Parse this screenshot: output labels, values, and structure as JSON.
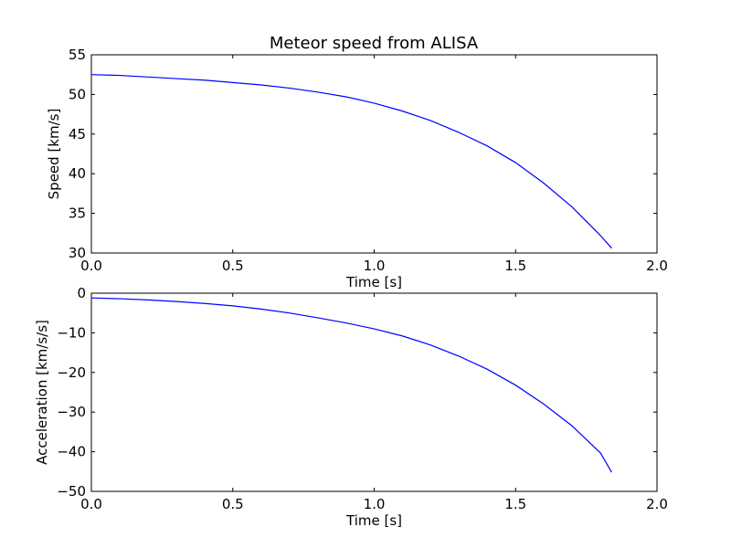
{
  "figure": {
    "title": "Meteor speed from  ALISA"
  },
  "chart_data": [
    {
      "type": "line",
      "title": "Meteor speed from  ALISA",
      "xlabel": "Time [s]",
      "ylabel": "Speed [km/s]",
      "xlim": [
        0.0,
        2.0
      ],
      "ylim": [
        30,
        55
      ],
      "xticks": [
        0.0,
        0.5,
        1.0,
        1.5,
        2.0
      ],
      "xtick_labels": [
        "0.0",
        "0.5",
        "1.0",
        "1.5",
        "2.0"
      ],
      "yticks": [
        30,
        35,
        40,
        45,
        50,
        55
      ],
      "ytick_labels": [
        "30",
        "35",
        "40",
        "45",
        "50",
        "55"
      ],
      "grid": false,
      "series": [
        {
          "color": "#0000ff",
          "x": [
            0.0,
            0.1,
            0.2,
            0.3,
            0.4,
            0.5,
            0.6,
            0.7,
            0.8,
            0.9,
            1.0,
            1.1,
            1.2,
            1.3,
            1.4,
            1.5,
            1.6,
            1.7,
            1.8,
            1.84
          ],
          "y": [
            52.5,
            52.4,
            52.2,
            52.0,
            51.8,
            51.5,
            51.2,
            50.8,
            50.3,
            49.7,
            48.9,
            47.9,
            46.7,
            45.2,
            43.5,
            41.4,
            38.8,
            35.8,
            32.2,
            30.6
          ]
        }
      ]
    },
    {
      "type": "line",
      "xlabel": "Time [s]",
      "ylabel": "Acceleration [km/s/s]",
      "xlim": [
        0.0,
        2.0
      ],
      "ylim": [
        -50,
        0
      ],
      "xticks": [
        0.0,
        0.5,
        1.0,
        1.5,
        2.0
      ],
      "xtick_labels": [
        "0.0",
        "0.5",
        "1.0",
        "1.5",
        "2.0"
      ],
      "yticks": [
        -50,
        -40,
        -30,
        -20,
        -10,
        0
      ],
      "ytick_labels": [
        "−50",
        "−40",
        "−30",
        "−20",
        "−10",
        "0"
      ],
      "grid": false,
      "series": [
        {
          "color": "#0000ff",
          "x": [
            0.0,
            0.1,
            0.2,
            0.3,
            0.4,
            0.5,
            0.6,
            0.7,
            0.8,
            0.9,
            1.0,
            1.1,
            1.2,
            1.3,
            1.4,
            1.5,
            1.6,
            1.7,
            1.8,
            1.84
          ],
          "y": [
            -1.2,
            -1.4,
            -1.7,
            -2.1,
            -2.6,
            -3.2,
            -4.0,
            -5.0,
            -6.2,
            -7.5,
            -9.0,
            -10.8,
            -13.1,
            -15.9,
            -19.2,
            -23.2,
            -28.0,
            -33.5,
            -40.3,
            -45.2
          ]
        }
      ]
    }
  ]
}
